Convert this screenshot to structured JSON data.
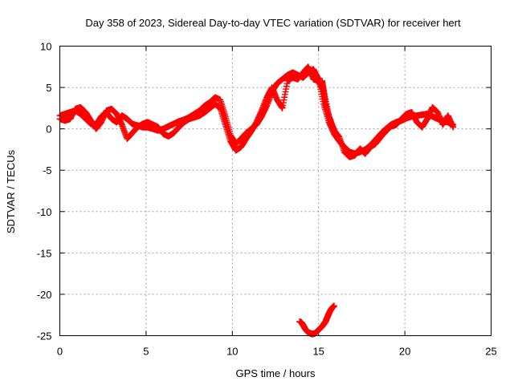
{
  "chart_data": {
    "type": "scatter",
    "title": "Day 358 of 2023, Sidereal Day-to-day VTEC variation (SDTVAR) for receiver hert",
    "xlabel": "GPS time / hours",
    "ylabel": "SDTVAR / TECUs",
    "xlim": [
      0,
      25
    ],
    "ylim": [
      -25,
      10
    ],
    "xticks": [
      "0",
      "5",
      "10",
      "15",
      "20",
      "25"
    ],
    "yticks": [
      "10",
      "5",
      "0",
      "-5",
      "-10",
      "-15",
      "-20",
      "-25"
    ],
    "grid": true,
    "marker": "plus",
    "color": "#ff0000",
    "series": [
      {
        "name": "main_track_a",
        "x": [
          0.0,
          0.3,
          0.6,
          0.9,
          1.2,
          1.5,
          1.8,
          2.1,
          2.4,
          2.7,
          3.0,
          3.3,
          3.6,
          3.9,
          4.2,
          4.5,
          4.8,
          5.1,
          5.4,
          5.7,
          6.0,
          6.3,
          6.6,
          6.9,
          7.2,
          7.5,
          7.8,
          8.1,
          8.4,
          8.7,
          9.0,
          9.3,
          9.6,
          9.9,
          10.2,
          10.5,
          10.8,
          11.1,
          11.4,
          11.7,
          12.0,
          12.3,
          12.6,
          12.9,
          13.2,
          13.5,
          13.8,
          14.1,
          14.4,
          14.7,
          15.0,
          15.3,
          15.6,
          15.9,
          16.2,
          16.5,
          16.8,
          17.1,
          17.4,
          17.7,
          18.0,
          18.3,
          18.6,
          18.9,
          19.2,
          19.5,
          19.8,
          20.1,
          20.4,
          20.7,
          21.0,
          21.3,
          21.6,
          21.9,
          22.2,
          22.5,
          22.8
        ],
        "y": [
          1.6,
          1.8,
          2.0,
          2.2,
          1.8,
          1.2,
          0.6,
          0.5,
          1.5,
          2.0,
          1.2,
          0.8,
          1.6,
          1.2,
          0.6,
          0.4,
          0.2,
          0.2,
          0.0,
          -0.2,
          0.0,
          0.3,
          0.6,
          0.9,
          1.1,
          1.4,
          1.8,
          2.2,
          2.8,
          3.2,
          3.8,
          3.5,
          1.5,
          -0.8,
          -1.8,
          -1.2,
          -0.5,
          0.0,
          0.5,
          1.5,
          2.8,
          4.5,
          5.5,
          6.0,
          6.5,
          6.8,
          6.5,
          6.2,
          6.8,
          7.2,
          6.0,
          3.0,
          0.8,
          -0.6,
          -1.5,
          -2.2,
          -2.8,
          -3.0,
          -2.8,
          -2.5,
          -2.0,
          -1.3,
          -0.6,
          0.0,
          0.5,
          0.8,
          1.0,
          1.3,
          1.5,
          1.6,
          1.7,
          1.8,
          1.5,
          1.2,
          1.0,
          0.8,
          0.5
        ]
      },
      {
        "name": "main_track_b",
        "x": [
          0.0,
          0.3,
          0.6,
          0.9,
          1.2,
          1.5,
          1.8,
          2.1,
          2.4,
          2.7,
          3.0,
          3.3,
          3.6,
          3.9,
          4.2,
          4.5,
          4.8,
          5.1,
          5.4,
          5.7,
          6.0,
          6.3,
          6.6,
          6.9,
          7.2,
          7.5,
          7.8,
          8.1,
          8.4,
          8.7,
          9.0,
          9.3,
          9.6,
          9.9,
          10.2,
          10.5,
          10.8,
          11.1,
          11.4,
          11.7,
          12.0,
          12.3,
          12.6,
          12.9,
          13.2,
          13.5,
          13.8,
          14.1,
          14.4,
          14.7,
          15.0,
          15.3,
          15.6,
          15.9,
          16.2,
          16.5,
          16.8,
          17.1,
          17.4,
          17.7,
          18.0,
          18.3,
          18.6,
          18.9,
          19.2,
          19.5,
          19.8,
          20.1,
          20.4,
          20.7,
          21.0,
          21.3,
          21.6,
          21.9,
          22.2,
          22.5,
          22.8
        ],
        "y": [
          1.2,
          1.0,
          1.2,
          2.4,
          2.6,
          2.0,
          1.0,
          0.0,
          0.8,
          2.2,
          2.4,
          1.8,
          0.5,
          -1.2,
          -0.5,
          0.2,
          0.6,
          0.8,
          0.5,
          0.2,
          -0.6,
          -0.9,
          -0.5,
          0.2,
          0.8,
          1.2,
          1.4,
          1.6,
          2.0,
          2.5,
          3.0,
          2.5,
          0.5,
          -1.5,
          -2.6,
          -2.2,
          -1.2,
          -0.3,
          0.8,
          2.2,
          3.8,
          5.0,
          3.5,
          2.5,
          5.8,
          6.2,
          6.0,
          6.8,
          7.5,
          6.0,
          5.8,
          4.5,
          1.5,
          -0.2,
          -1.0,
          -2.8,
          -3.4,
          -3.2,
          -2.4,
          -3.0,
          -2.2,
          -1.8,
          -1.0,
          -0.3,
          0.3,
          0.5,
          1.2,
          1.8,
          2.0,
          0.8,
          0.2,
          1.2,
          2.6,
          2.0,
          0.5,
          1.6,
          0.2
        ]
      },
      {
        "name": "late_branch",
        "x": [
          15.2,
          15.3,
          15.4,
          15.6,
          15.8,
          16.0
        ],
        "y": [
          5.8,
          4.5,
          3.0,
          1.5,
          0.3,
          -0.6
        ]
      },
      {
        "name": "negative_arc",
        "x": [
          13.9,
          14.0,
          14.1,
          14.2,
          14.3,
          14.4,
          14.5,
          14.6,
          14.7,
          14.8,
          14.9,
          15.0,
          15.1,
          15.2,
          15.3,
          15.4,
          15.5,
          15.6,
          15.7,
          15.8,
          15.9
        ],
        "y": [
          -23.3,
          -23.4,
          -23.7,
          -24.1,
          -24.4,
          -24.6,
          -24.7,
          -24.8,
          -24.8,
          -24.7,
          -24.5,
          -24.3,
          -24.1,
          -23.9,
          -23.6,
          -23.3,
          -22.8,
          -22.3,
          -21.9,
          -21.6,
          -21.4
        ]
      }
    ]
  }
}
